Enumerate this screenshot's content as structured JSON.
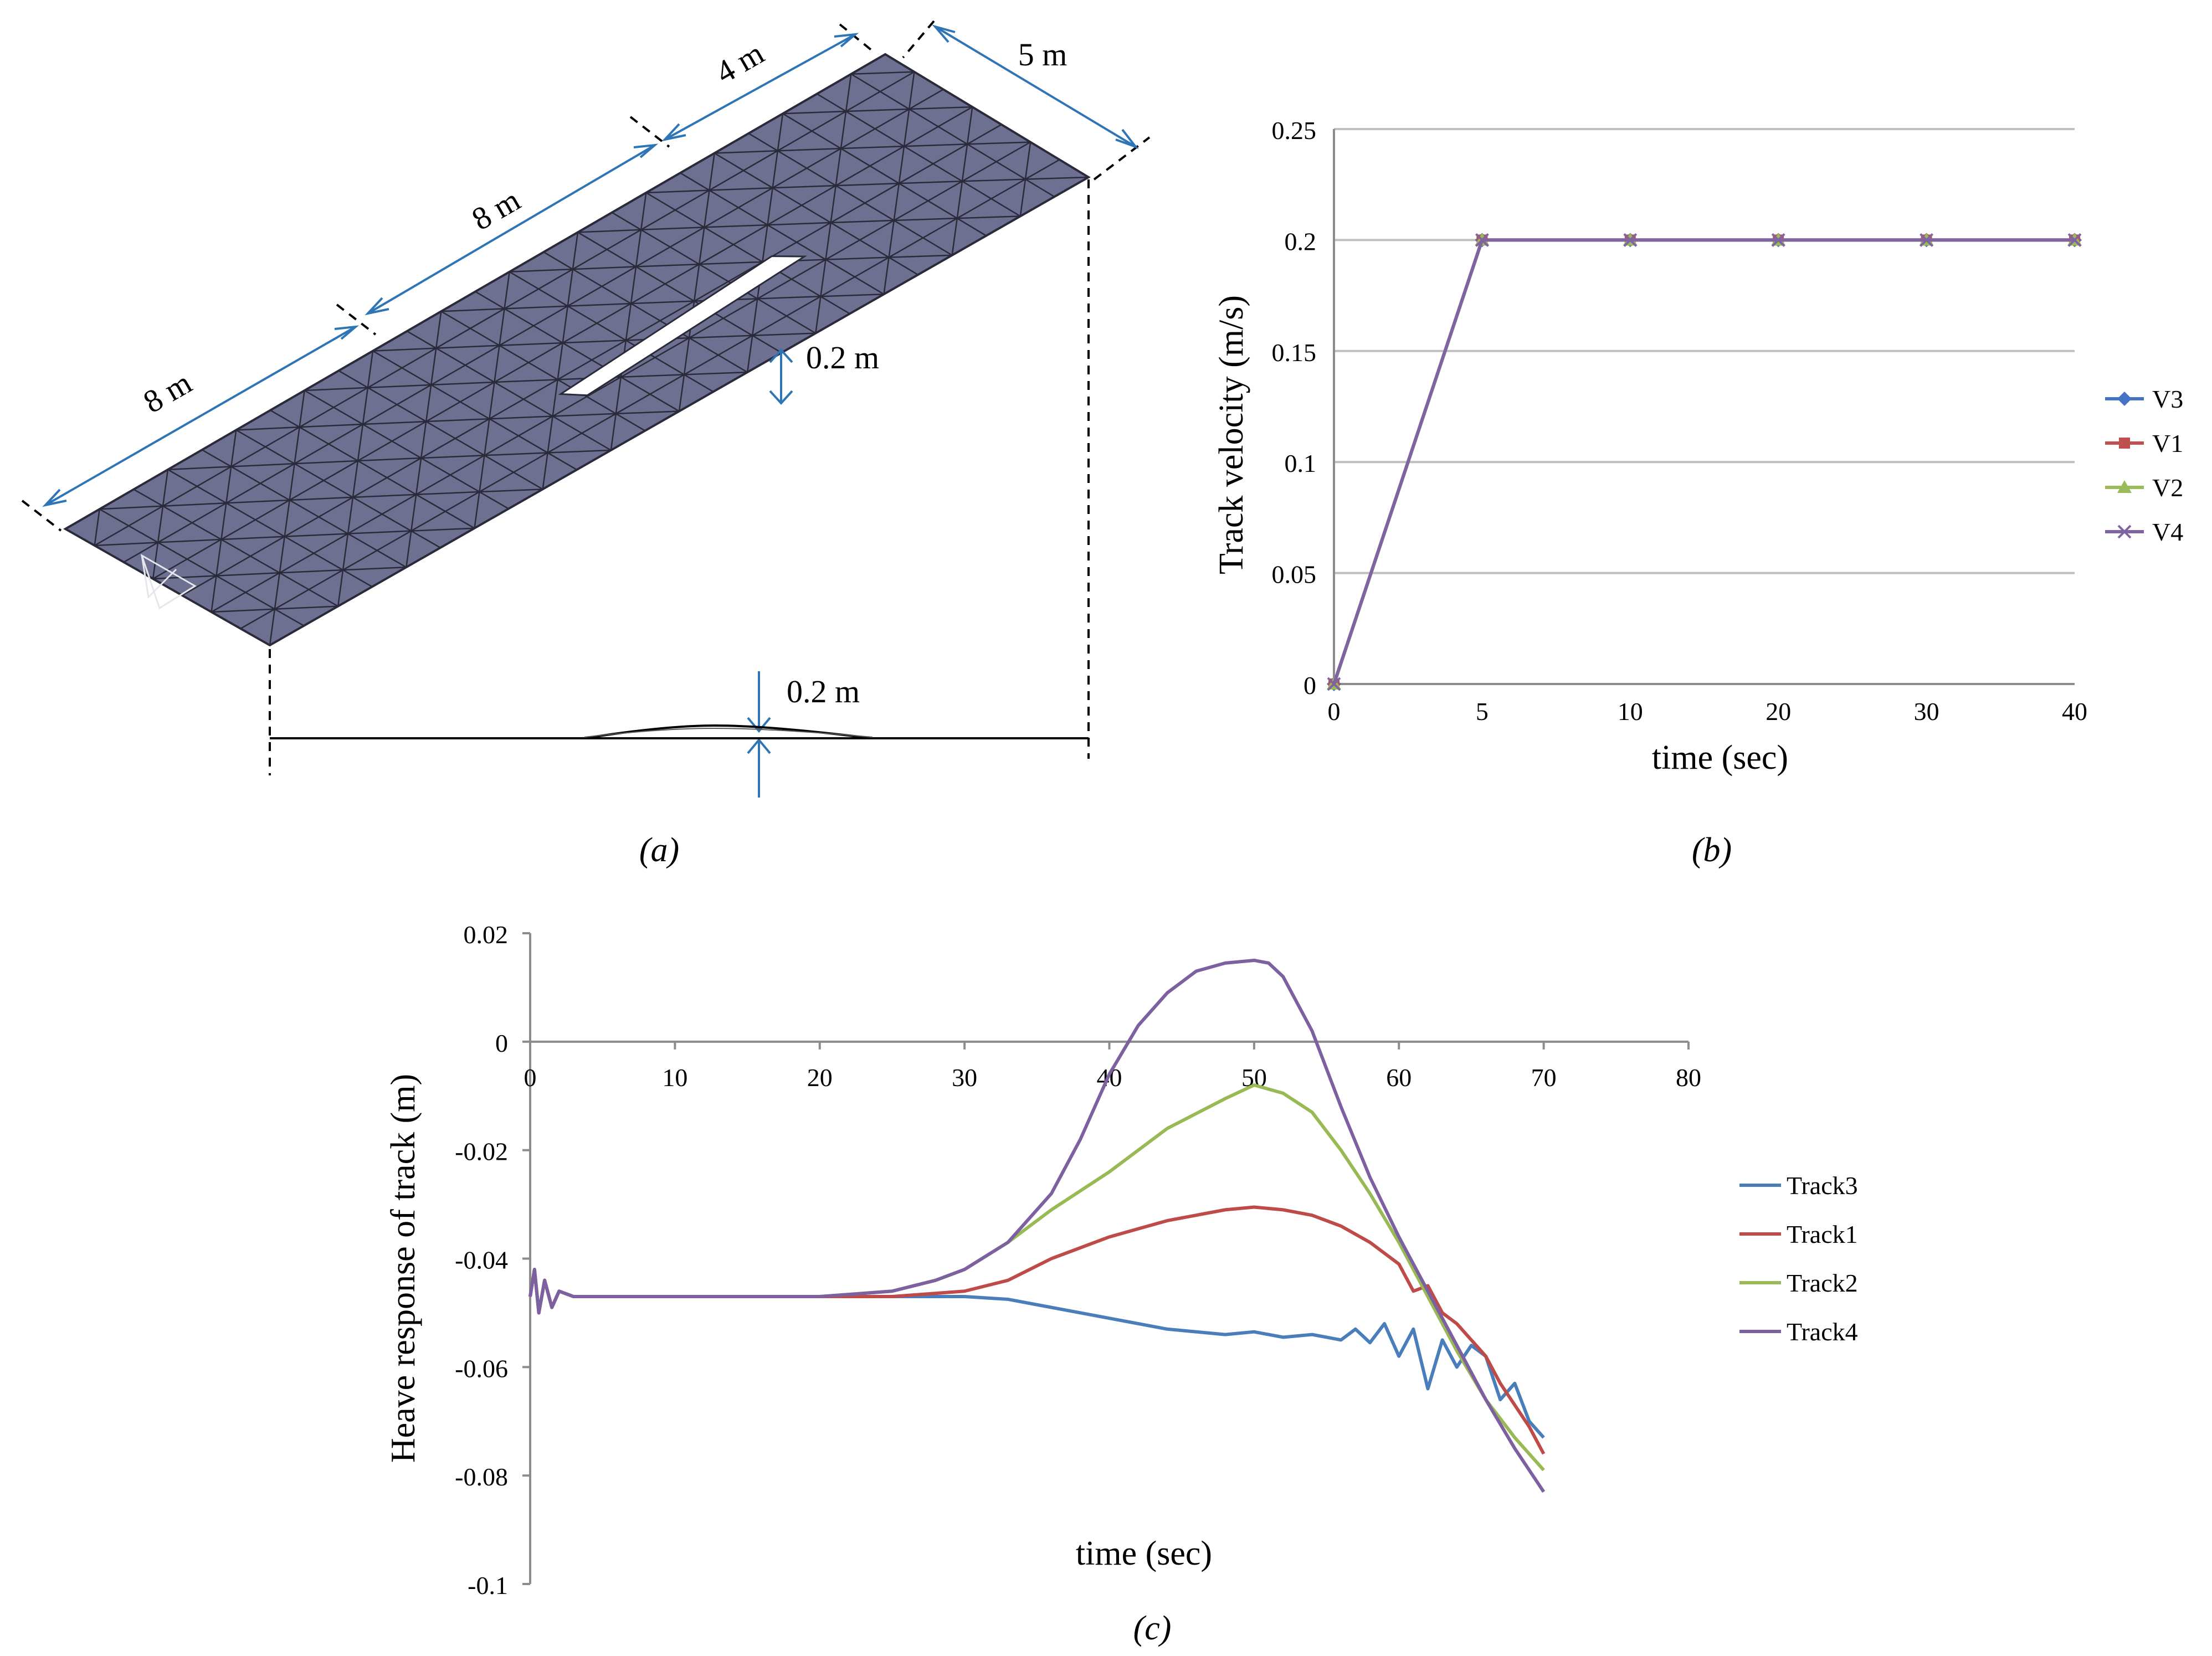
{
  "panel_a": {
    "caption": "(a)",
    "dimensions": {
      "seg1": "8 m",
      "seg2": "8 m",
      "seg3": "4 m",
      "width": "5 m",
      "hump_plan": "0.2 m",
      "hump_profile": "0.2 m"
    },
    "colors": {
      "mesh_fill": "#6e7091",
      "mesh_line": "#2a2a3a",
      "arrow": "#2e75b6"
    }
  },
  "chart_data": [
    {
      "id": "b",
      "type": "line",
      "caption": "(b)",
      "title": "",
      "xlabel": "time (sec)",
      "ylabel": "Track velocity (m/s)",
      "x_categories": [
        "0",
        "5",
        "10",
        "20",
        "30",
        "40"
      ],
      "ylim": [
        0,
        0.25
      ],
      "y_ticks": [
        "0",
        "0.05",
        "0.1",
        "0.15",
        "0.2",
        "0.25"
      ],
      "grid": true,
      "legend_position": "right",
      "series": [
        {
          "name": "V3",
          "color": "#4472c4",
          "marker": "diamond",
          "values": [
            0,
            0.2,
            0.2,
            0.2,
            0.2,
            0.2
          ]
        },
        {
          "name": "V1",
          "color": "#c0504d",
          "marker": "square",
          "values": [
            0,
            0.2,
            0.2,
            0.2,
            0.2,
            0.2
          ]
        },
        {
          "name": "V2",
          "color": "#9bbb59",
          "marker": "triangle",
          "values": [
            0,
            0.2,
            0.2,
            0.2,
            0.2,
            0.2
          ]
        },
        {
          "name": "V4",
          "color": "#8064a2",
          "marker": "x",
          "values": [
            0,
            0.2,
            0.2,
            0.2,
            0.2,
            0.2
          ]
        }
      ]
    },
    {
      "id": "c",
      "type": "line",
      "caption": "(c)",
      "title": "",
      "xlabel": "time (sec)",
      "ylabel": "Heave response of track (m)",
      "xlim": [
        0,
        80
      ],
      "ylim": [
        -0.1,
        0.02
      ],
      "x_ticks": [
        "0",
        "10",
        "20",
        "30",
        "40",
        "50",
        "60",
        "70",
        "80"
      ],
      "y_ticks": [
        "0.02",
        "0",
        "-0.02",
        "-0.04",
        "-0.06",
        "-0.08",
        "-0.1"
      ],
      "grid": false,
      "legend_position": "right",
      "series": [
        {
          "name": "Track3",
          "color": "#4a7ebb",
          "x": [
            0,
            0.3,
            0.6,
            1,
            1.5,
            2,
            3,
            5,
            10,
            20,
            25,
            30,
            33,
            36,
            40,
            44,
            48,
            50,
            52,
            54,
            56,
            57,
            58,
            59,
            60,
            61,
            62,
            63,
            64,
            65,
            66,
            67,
            68,
            69,
            70
          ],
          "y": [
            -0.047,
            -0.042,
            -0.05,
            -0.044,
            -0.049,
            -0.046,
            -0.047,
            -0.047,
            -0.047,
            -0.047,
            -0.047,
            -0.047,
            -0.0475,
            -0.049,
            -0.051,
            -0.053,
            -0.054,
            -0.0535,
            -0.0545,
            -0.054,
            -0.055,
            -0.053,
            -0.0555,
            -0.052,
            -0.058,
            -0.053,
            -0.064,
            -0.055,
            -0.06,
            -0.056,
            -0.058,
            -0.066,
            -0.063,
            -0.07,
            -0.073
          ]
        },
        {
          "name": "Track1",
          "color": "#be4b48",
          "x": [
            0,
            0.3,
            0.6,
            1,
            1.5,
            2,
            3,
            5,
            10,
            20,
            25,
            30,
            33,
            36,
            40,
            44,
            48,
            50,
            52,
            54,
            56,
            58,
            60,
            61,
            62,
            63,
            64,
            65,
            66,
            67,
            68,
            69,
            70
          ],
          "y": [
            -0.047,
            -0.042,
            -0.05,
            -0.044,
            -0.049,
            -0.046,
            -0.047,
            -0.047,
            -0.047,
            -0.047,
            -0.047,
            -0.046,
            -0.044,
            -0.04,
            -0.036,
            -0.033,
            -0.031,
            -0.0305,
            -0.031,
            -0.032,
            -0.034,
            -0.037,
            -0.041,
            -0.046,
            -0.045,
            -0.05,
            -0.052,
            -0.055,
            -0.058,
            -0.063,
            -0.067,
            -0.071,
            -0.076
          ]
        },
        {
          "name": "Track2",
          "color": "#98b954",
          "x": [
            0,
            0.3,
            0.6,
            1,
            1.5,
            2,
            3,
            5,
            10,
            20,
            25,
            28,
            30,
            33,
            36,
            40,
            44,
            48,
            50,
            52,
            54,
            56,
            58,
            60,
            62,
            64,
            66,
            68,
            70
          ],
          "y": [
            -0.047,
            -0.042,
            -0.05,
            -0.044,
            -0.049,
            -0.046,
            -0.047,
            -0.047,
            -0.047,
            -0.047,
            -0.046,
            -0.044,
            -0.042,
            -0.037,
            -0.031,
            -0.024,
            -0.016,
            -0.0105,
            -0.008,
            -0.0095,
            -0.013,
            -0.02,
            -0.028,
            -0.037,
            -0.047,
            -0.057,
            -0.066,
            -0.073,
            -0.079
          ]
        },
        {
          "name": "Track4",
          "color": "#7d60a0",
          "x": [
            0,
            0.3,
            0.6,
            1,
            1.5,
            2,
            3,
            5,
            10,
            20,
            25,
            28,
            30,
            33,
            36,
            38,
            40,
            42,
            44,
            46,
            48,
            50,
            51,
            52,
            54,
            56,
            58,
            60,
            62,
            64,
            66,
            68,
            70
          ],
          "y": [
            -0.047,
            -0.042,
            -0.05,
            -0.044,
            -0.049,
            -0.046,
            -0.047,
            -0.047,
            -0.047,
            -0.047,
            -0.046,
            -0.044,
            -0.042,
            -0.037,
            -0.028,
            -0.018,
            -0.006,
            0.003,
            0.009,
            0.013,
            0.0145,
            0.015,
            0.0145,
            0.012,
            0.002,
            -0.012,
            -0.025,
            -0.036,
            -0.046,
            -0.056,
            -0.066,
            -0.075,
            -0.083
          ]
        }
      ]
    }
  ]
}
